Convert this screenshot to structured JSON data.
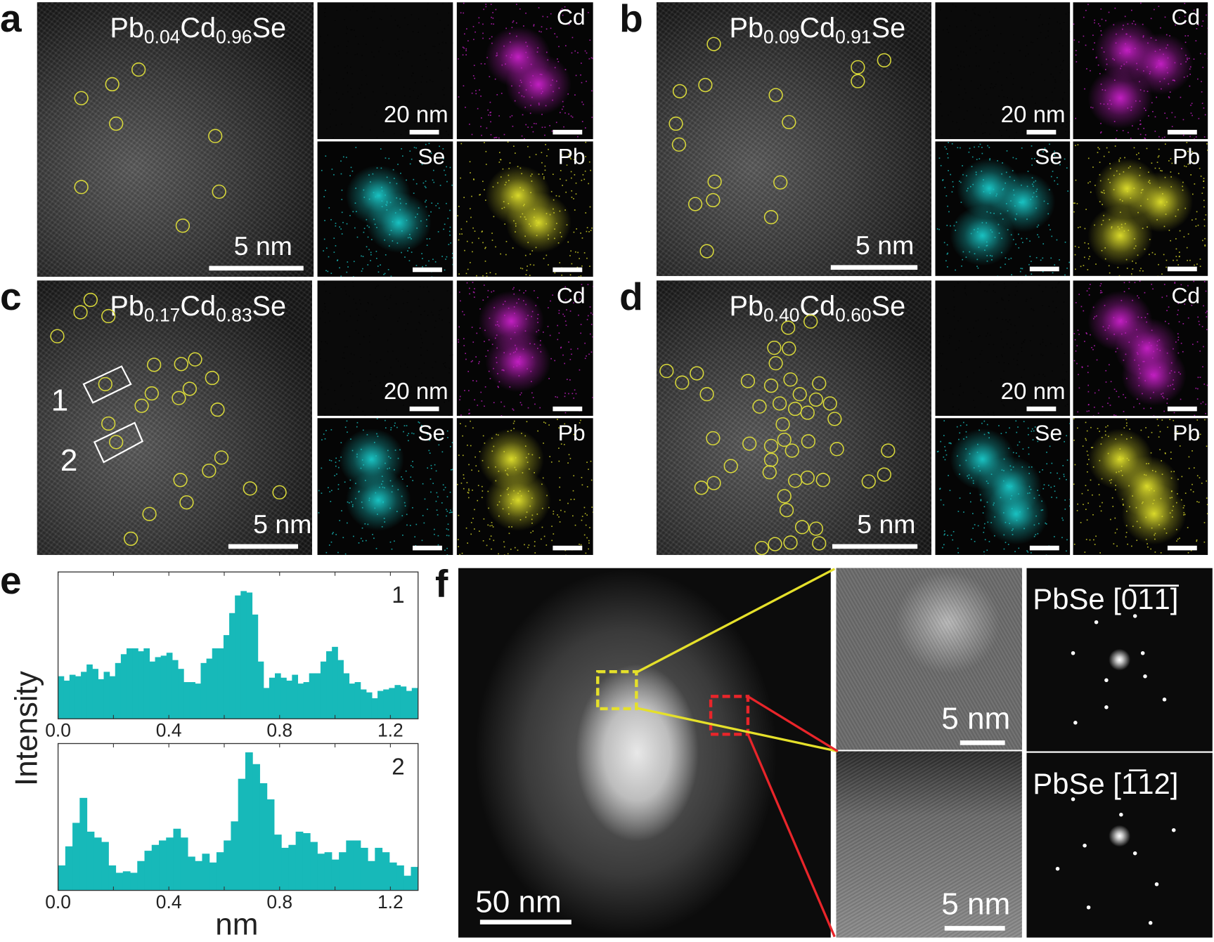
{
  "panels": {
    "a": {
      "letter": "a",
      "formula": {
        "base1": "Pb",
        "sub1": "0.04",
        "base2": "Cd",
        "sub2": "0.96",
        "base3": "Se"
      },
      "scale_main": "5 nm",
      "scale_haadf": "20 nm",
      "maps": [
        "Cd",
        "Se",
        "Pb"
      ]
    },
    "b": {
      "letter": "b",
      "formula": {
        "base1": "Pb",
        "sub1": "0.09",
        "base2": "Cd",
        "sub2": "0.91",
        "base3": "Se"
      },
      "scale_main": "5 nm",
      "scale_haadf": "20 nm",
      "maps": [
        "Cd",
        "Se",
        "Pb"
      ]
    },
    "c": {
      "letter": "c",
      "formula": {
        "base1": "Pb",
        "sub1": "0.17",
        "base2": "Cd",
        "sub2": "0.83",
        "base3": "Se"
      },
      "scale_main": "5 nm",
      "scale_haadf": "20 nm",
      "maps": [
        "Cd",
        "Se",
        "Pb"
      ],
      "box_labels": [
        "1",
        "2"
      ]
    },
    "d": {
      "letter": "d",
      "formula": {
        "base1": "Pb",
        "sub1": "0.40",
        "base2": "Cd",
        "sub2": "0.60",
        "base3": "Se"
      },
      "scale_main": "5 nm",
      "scale_haadf": "20 nm",
      "maps": [
        "Cd",
        "Se",
        "Pb"
      ]
    },
    "e": {
      "letter": "e"
    },
    "f": {
      "letter": "f",
      "scale_main": "50 nm",
      "scale_zoom1": "5 nm",
      "scale_zoom2": "5 nm",
      "fft1": {
        "prefix": "PbSe [",
        "index": "0̅1̅1̅",
        "suffix": "]"
      },
      "fft2": {
        "prefix": "PbSe [",
        "index": "1̅12",
        "suffix": "]"
      }
    }
  },
  "colors": {
    "Cd": "#c21fc2",
    "Se": "#19c2c2",
    "Pb": "#d9d92a",
    "circle": "#d8d83a",
    "bars": "#17b9b9",
    "box_yellow": "#e5e02a",
    "box_red": "#e8252a"
  },
  "chart_data": {
    "type": "bar",
    "xlabel": "nm",
    "ylabel": "Intensity",
    "xlim": [
      0,
      1.3
    ],
    "xticks": [
      "0.0",
      "0.4",
      "0.8",
      "1.2"
    ],
    "series": [
      {
        "name": "1",
        "bin_width": 0.0206,
        "values": [
          29,
          26,
          30,
          29,
          32,
          37,
          34,
          27,
          32,
          29,
          38,
          44,
          48,
          48,
          46,
          48,
          39,
          42,
          43,
          45,
          40,
          34,
          25,
          25,
          24,
          38,
          41,
          48,
          48,
          57,
          72,
          84,
          87,
          86,
          71,
          39,
          21,
          28,
          31,
          28,
          26,
          30,
          24,
          25,
          31,
          31,
          39,
          46,
          49,
          40,
          31,
          24,
          25,
          20,
          18,
          14,
          19,
          20,
          21,
          23,
          22,
          19,
          21
        ]
      },
      {
        "name": "2",
        "bin_width": 0.026,
        "values": [
          17,
          30,
          46,
          63,
          40,
          36,
          33,
          17,
          12,
          13,
          12,
          20,
          27,
          31,
          34,
          36,
          42,
          36,
          23,
          20,
          25,
          19,
          26,
          34,
          47,
          76,
          94,
          86,
          73,
          62,
          38,
          29,
          31,
          40,
          39,
          33,
          25,
          26,
          21,
          26,
          34,
          34,
          29,
          20,
          29,
          26,
          19,
          17,
          10,
          16
        ]
      }
    ]
  }
}
